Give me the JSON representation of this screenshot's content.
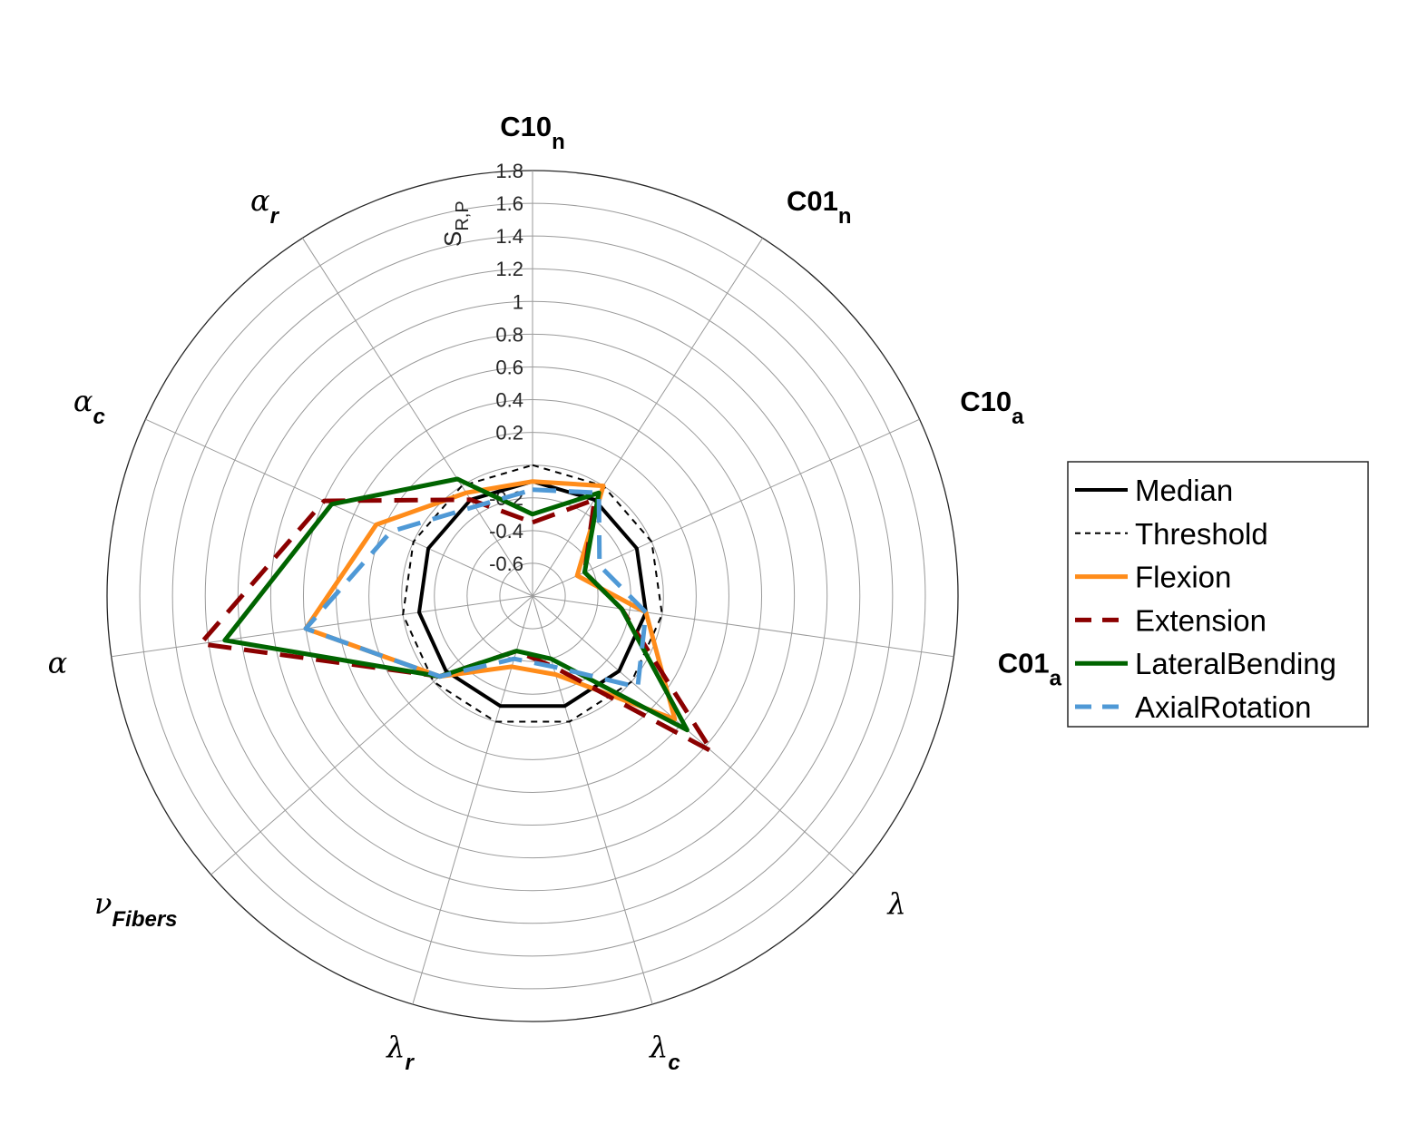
{
  "chart_data": {
    "type": "radar",
    "axes": [
      {
        "main": "C10",
        "sub": "n",
        "greek": false
      },
      {
        "main": "C01",
        "sub": "n",
        "greek": false
      },
      {
        "main": "C10",
        "sub": "a",
        "greek": false
      },
      {
        "main": "C01",
        "sub": "a",
        "greek": false
      },
      {
        "main": "λ",
        "sub": "",
        "greek": true
      },
      {
        "main": "λ",
        "sub": "c",
        "greek": true
      },
      {
        "main": "λ",
        "sub": "r",
        "greek": true
      },
      {
        "main": "ν",
        "sub": "Fibers",
        "greek": true
      },
      {
        "main": "α",
        "sub": "",
        "greek": true
      },
      {
        "main": "α",
        "sub": "c",
        "greek": true
      },
      {
        "main": "α",
        "sub": "r",
        "greek": true
      }
    ],
    "rlim": [
      -0.8,
      1.8
    ],
    "ticks": [
      "-0.6",
      "-0.4",
      "-0.2",
      "0.2",
      "0.4",
      "0.6",
      "0.8",
      "1",
      "1.2",
      "1.4",
      "1.6",
      "1.8"
    ],
    "tick_values": [
      -0.6,
      -0.4,
      -0.2,
      0.2,
      0.4,
      0.6,
      0.8,
      1.0,
      1.2,
      1.4,
      1.6,
      1.8
    ],
    "grid_levels": [
      -0.6,
      -0.4,
      -0.2,
      0.0,
      0.2,
      0.4,
      0.6,
      0.8,
      1.0,
      1.2,
      1.4,
      1.6,
      1.8
    ],
    "ylabel": {
      "main": "S",
      "sub": "R,P"
    },
    "legend_position": "right",
    "series": [
      {
        "name": "Median",
        "color": "#000000",
        "dash": "solid",
        "width": 4,
        "values": [
          -0.1,
          -0.1,
          -0.1,
          -0.1,
          -0.1,
          -0.1,
          -0.1,
          -0.1,
          -0.1,
          -0.1,
          -0.1
        ]
      },
      {
        "name": "Threshold",
        "color": "#000000",
        "dash": "dotted",
        "width": 2,
        "values": [
          0.0,
          0.0,
          0.0,
          0.0,
          0.0,
          0.0,
          0.0,
          0.0,
          0.0,
          0.0,
          0.0
        ]
      },
      {
        "name": "Flexion",
        "color": "#ff8c1a",
        "dash": "solid",
        "width": 5,
        "values": [
          -0.1,
          0.0,
          -0.5,
          -0.1,
          0.35,
          -0.3,
          -0.35,
          -0.05,
          0.6,
          0.25,
          -0.05
        ]
      },
      {
        "name": "Extension",
        "color": "#8b0000",
        "dash": "dashed",
        "width": 5,
        "values": [
          -0.35,
          -0.1,
          -0.45,
          -0.25,
          0.65,
          -0.35,
          -0.45,
          -0.05,
          1.25,
          0.6,
          -0.1
        ]
      },
      {
        "name": "LateralBending",
        "color": "#006400",
        "dash": "solid",
        "width": 5,
        "values": [
          -0.3,
          -0.05,
          -0.45,
          -0.25,
          0.45,
          -0.4,
          -0.45,
          -0.05,
          1.1,
          0.55,
          0.05
        ]
      },
      {
        "name": "AxialRotation",
        "color": "#4f99d6",
        "dash": "dashed",
        "width": 5,
        "values": [
          -0.15,
          -0.05,
          -0.35,
          -0.1,
          0.05,
          -0.35,
          -0.4,
          -0.05,
          0.6,
          0.15,
          -0.15
        ]
      }
    ]
  }
}
